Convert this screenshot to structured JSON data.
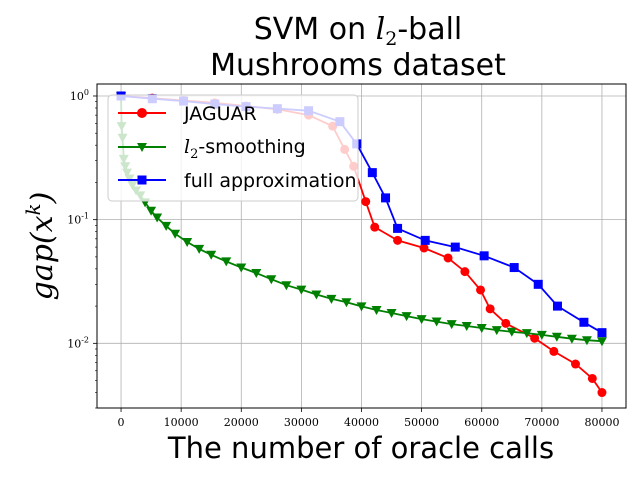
{
  "chart_data": {
    "type": "line",
    "title": [
      "SVM on l2-ball",
      "Mushrooms dataset"
    ],
    "xlabel": "The number of oracle calls",
    "ylabel": "gap(x^k)",
    "xlim": [
      -4000,
      84000
    ],
    "ylim": [
      0.003,
      1.25
    ],
    "yscale": "log",
    "grid": true,
    "legend_position": "upper-left",
    "x_ticks": [
      0,
      10000,
      20000,
      30000,
      40000,
      50000,
      60000,
      70000,
      80000
    ],
    "x_tick_labels": [
      "0",
      "10000",
      "20000",
      "30000",
      "40000",
      "50000",
      "60000",
      "70000",
      "80000"
    ],
    "y_ticks": [
      0.01,
      0.1,
      1
    ],
    "y_tick_labels": [
      "10^-2",
      "10^-1",
      "10^0"
    ],
    "series": [
      {
        "name": "JAGUAR",
        "color": "#ff0000",
        "marker": "circle",
        "x": [
          0,
          5200,
          10400,
          15600,
          20800,
          26000,
          31200,
          35200,
          37200,
          38700,
          40700,
          42200,
          46000,
          50400,
          54400,
          57200,
          59800,
          61400,
          64000,
          68800,
          72000,
          75600,
          78400,
          80000
        ],
        "y": [
          1.0,
          0.96,
          0.92,
          0.88,
          0.83,
          0.78,
          0.7,
          0.57,
          0.37,
          0.27,
          0.14,
          0.087,
          0.068,
          0.059,
          0.049,
          0.038,
          0.027,
          0.019,
          0.0145,
          0.011,
          0.0086,
          0.0068,
          0.0052,
          0.004
        ]
      },
      {
        "name": "l2-smoothing",
        "color": "#008000",
        "marker": "triangle-down",
        "x": [
          0,
          100,
          250,
          450,
          700,
          1000,
          1400,
          1900,
          2500,
          3200,
          4000,
          5000,
          6000,
          7500,
          9000,
          11000,
          13000,
          15000,
          17500,
          20000,
          22500,
          25000,
          27500,
          30000,
          32500,
          35000,
          37500,
          40000,
          42500,
          45000,
          47500,
          50000,
          52500,
          55000,
          57500,
          60000,
          62500,
          65000,
          67500,
          70000,
          72500,
          75000,
          77500,
          80000
        ],
        "y": [
          1.0,
          0.57,
          0.46,
          0.31,
          0.27,
          0.24,
          0.215,
          0.19,
          0.172,
          0.157,
          0.138,
          0.118,
          0.104,
          0.089,
          0.077,
          0.066,
          0.058,
          0.052,
          0.046,
          0.041,
          0.037,
          0.033,
          0.0295,
          0.0272,
          0.0248,
          0.0229,
          0.0215,
          0.0199,
          0.0186,
          0.0176,
          0.0166,
          0.0157,
          0.015,
          0.0143,
          0.0138,
          0.0133,
          0.0128,
          0.0124,
          0.0121,
          0.0117,
          0.0113,
          0.0109,
          0.0106,
          0.0104
        ]
      },
      {
        "name": "full approximation",
        "color": "#0000ff",
        "marker": "square",
        "x": [
          0,
          5200,
          10400,
          15600,
          20800,
          26000,
          31200,
          36400,
          39200,
          41800,
          44000,
          46000,
          50600,
          55600,
          60400,
          65400,
          69400,
          72600,
          77000,
          80000
        ],
        "y": [
          1.0,
          0.95,
          0.91,
          0.86,
          0.82,
          0.79,
          0.76,
          0.62,
          0.41,
          0.24,
          0.15,
          0.085,
          0.068,
          0.06,
          0.051,
          0.041,
          0.03,
          0.02,
          0.0148,
          0.0122
        ]
      }
    ]
  }
}
